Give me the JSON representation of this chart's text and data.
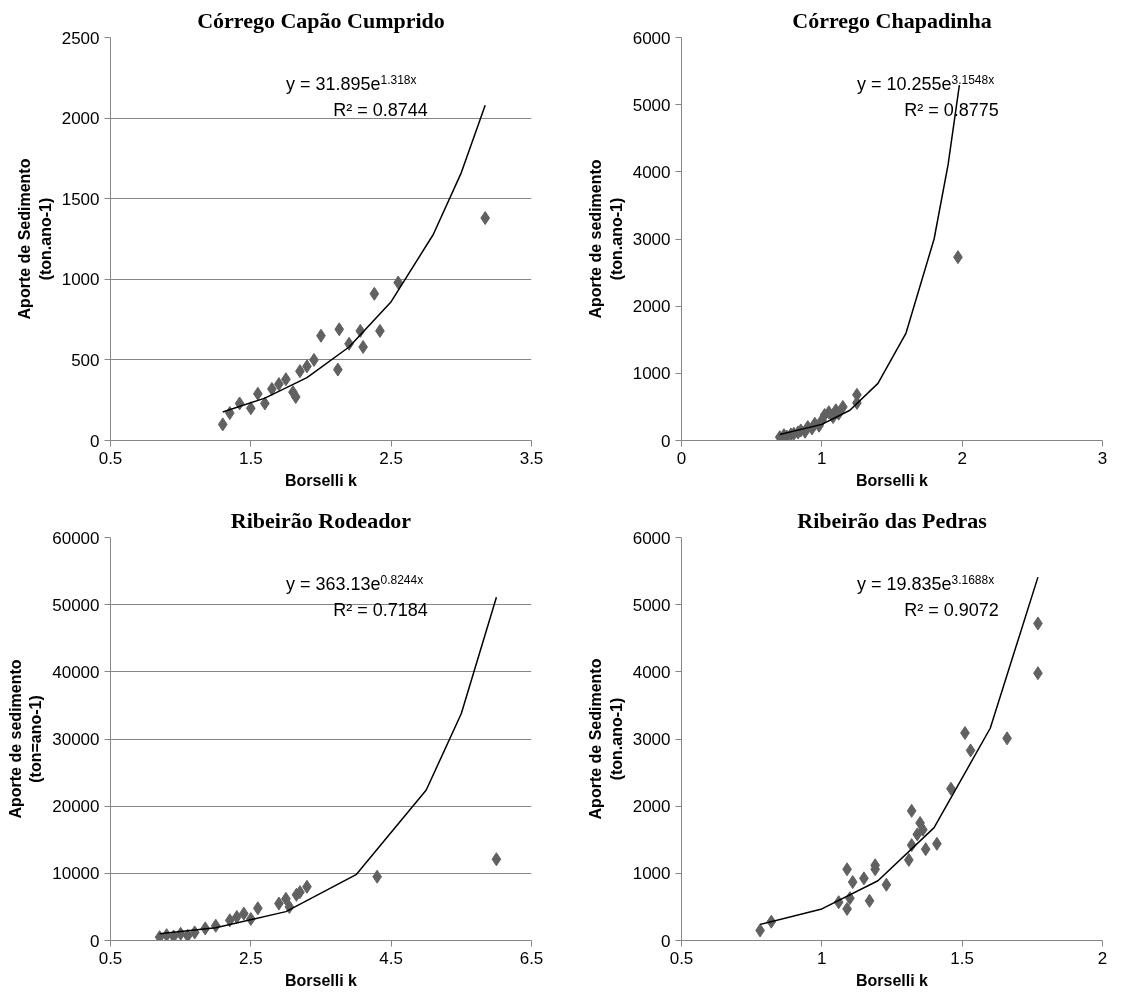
{
  "chart_data": [
    {
      "type": "scatter",
      "title": "Córrego Capão Cumprido",
      "xlabel": "Borselli k",
      "ylabel": "Aporte de Sedimento\n(ton.ano-1)",
      "grid": "y",
      "xlim": [
        0.5,
        3.5
      ],
      "xticks": [
        0.5,
        1.5,
        2.5,
        3.5
      ],
      "ylim": [
        0,
        2500
      ],
      "yticks": [
        0,
        500,
        1000,
        1500,
        2000,
        2500
      ],
      "annotations": [
        "y = 31.895e$^{1.318x}$",
        "R² = 0.8744"
      ],
      "series": [
        {
          "marker": "diamond",
          "color": "#616161",
          "x": [
            1.3,
            1.35,
            1.42,
            1.5,
            1.55,
            1.6,
            1.65,
            1.7,
            1.75,
            1.8,
            1.82,
            1.85,
            1.9,
            1.95,
            2.0,
            2.12,
            2.13,
            2.2,
            2.28,
            2.3,
            2.38,
            2.42,
            2.55,
            3.17
          ],
          "values": [
            100,
            170,
            230,
            200,
            290,
            230,
            320,
            350,
            380,
            300,
            270,
            430,
            460,
            500,
            650,
            440,
            690,
            600,
            680,
            580,
            910,
            680,
            980,
            1380
          ]
        },
        {
          "type": "line",
          "color": "#000000",
          "x": [
            1.3,
            1.6,
            1.9,
            2.2,
            2.5,
            2.8,
            3.0,
            3.17
          ],
          "values": [
            177,
            263,
            390,
            580,
            861,
            1278,
            1662,
            2080
          ]
        }
      ]
    },
    {
      "type": "scatter",
      "title": "Córrego Chapadinha",
      "xlabel": "Borselli k",
      "ylabel": "Aporte de sedimento\n(ton.ano-1)",
      "grid": false,
      "xlim": [
        0,
        3
      ],
      "xticks": [
        0,
        1,
        2,
        3
      ],
      "ylim": [
        0,
        6000
      ],
      "yticks": [
        0,
        1000,
        2000,
        3000,
        4000,
        5000,
        6000
      ],
      "annotations": [
        "y = 10.255e$^{3.1548x}$",
        "R² = 0.8775"
      ],
      "series": [
        {
          "marker": "diamond",
          "color": "#616161",
          "x": [
            0.7,
            0.73,
            0.75,
            0.78,
            0.8,
            0.83,
            0.85,
            0.88,
            0.9,
            0.93,
            0.95,
            0.98,
            1.0,
            1.02,
            1.05,
            1.08,
            1.1,
            1.12,
            1.15,
            1.25,
            1.25,
            1.97
          ],
          "values": [
            50,
            80,
            60,
            90,
            100,
            120,
            150,
            130,
            200,
            180,
            250,
            220,
            300,
            380,
            420,
            350,
            450,
            400,
            500,
            680,
            560,
            2730
          ]
        },
        {
          "type": "line",
          "color": "#000000",
          "x": [
            0.7,
            1.0,
            1.2,
            1.4,
            1.6,
            1.8,
            1.9,
            1.98
          ],
          "values": [
            90,
            240,
            450,
            850,
            1600,
            3000,
            4110,
            5290
          ]
        }
      ]
    },
    {
      "type": "scatter",
      "title": "Ribeirão Rodeador",
      "xlabel": "Borselli k",
      "ylabel": "Aporte de sedimento\n(ton=ano-1)",
      "grid": "y",
      "xlim": [
        0.5,
        6.5
      ],
      "xticks": [
        0.5,
        2.5,
        4.5,
        6.5
      ],
      "ylim": [
        0,
        60000
      ],
      "yticks": [
        0,
        10000,
        20000,
        30000,
        40000,
        50000,
        60000
      ],
      "annotations": [
        "y = 363.13e$^{0.8244x}$",
        "R² = 0.7184"
      ],
      "series": [
        {
          "marker": "diamond",
          "color": "#616161",
          "x": [
            1.2,
            1.3,
            1.4,
            1.5,
            1.6,
            1.7,
            1.85,
            2.0,
            2.2,
            2.3,
            2.4,
            2.5,
            2.6,
            2.9,
            3.0,
            3.05,
            3.15,
            3.2,
            3.3,
            4.3,
            6.0
          ],
          "values": [
            500,
            800,
            600,
            1000,
            700,
            1200,
            1800,
            2200,
            3000,
            3500,
            4000,
            3200,
            4800,
            5500,
            6200,
            5000,
            6800,
            7200,
            8000,
            9500,
            12100
          ]
        },
        {
          "type": "line",
          "color": "#000000",
          "x": [
            1.2,
            2.0,
            3.0,
            4.0,
            5.0,
            5.5,
            6.0
          ],
          "values": [
            1000,
            1900,
            4300,
            9800,
            22400,
            33800,
            51100
          ]
        }
      ]
    },
    {
      "type": "scatter",
      "title": "Ribeirão das Pedras",
      "xlabel": "Borselli k",
      "ylabel": "Aporte de Sedimento\n(ton.ano-1)",
      "grid": false,
      "xlim": [
        0.5,
        2
      ],
      "xticks": [
        0.5,
        1,
        1.5,
        2
      ],
      "ylim": [
        0,
        6000
      ],
      "yticks": [
        0,
        1000,
        2000,
        3000,
        4000,
        5000,
        6000
      ],
      "annotations": [
        "y = 19.835e$^{3.1688x}$",
        "R² = 0.9072"
      ],
      "series": [
        {
          "marker": "diamond",
          "color": "#616161",
          "x": [
            0.78,
            0.82,
            1.06,
            1.09,
            1.1,
            1.09,
            1.11,
            1.15,
            1.17,
            1.19,
            1.19,
            1.23,
            1.31,
            1.32,
            1.32,
            1.34,
            1.35,
            1.36,
            1.37,
            1.41,
            1.46,
            1.51,
            1.53,
            1.66,
            1.77,
            1.77
          ],
          "values": [
            150,
            280,
            570,
            470,
            630,
            1060,
            870,
            925,
            590,
            1060,
            1120,
            830,
            1200,
            1420,
            1930,
            1580,
            1750,
            1650,
            1360,
            1440,
            2260,
            3090,
            2830,
            3010,
            4720,
            3980
          ]
        },
        {
          "type": "line",
          "color": "#000000",
          "x": [
            0.78,
            1.0,
            1.2,
            1.4,
            1.6,
            1.77
          ],
          "values": [
            240,
            470,
            890,
            1680,
            3160,
            5410
          ]
        }
      ]
    }
  ]
}
